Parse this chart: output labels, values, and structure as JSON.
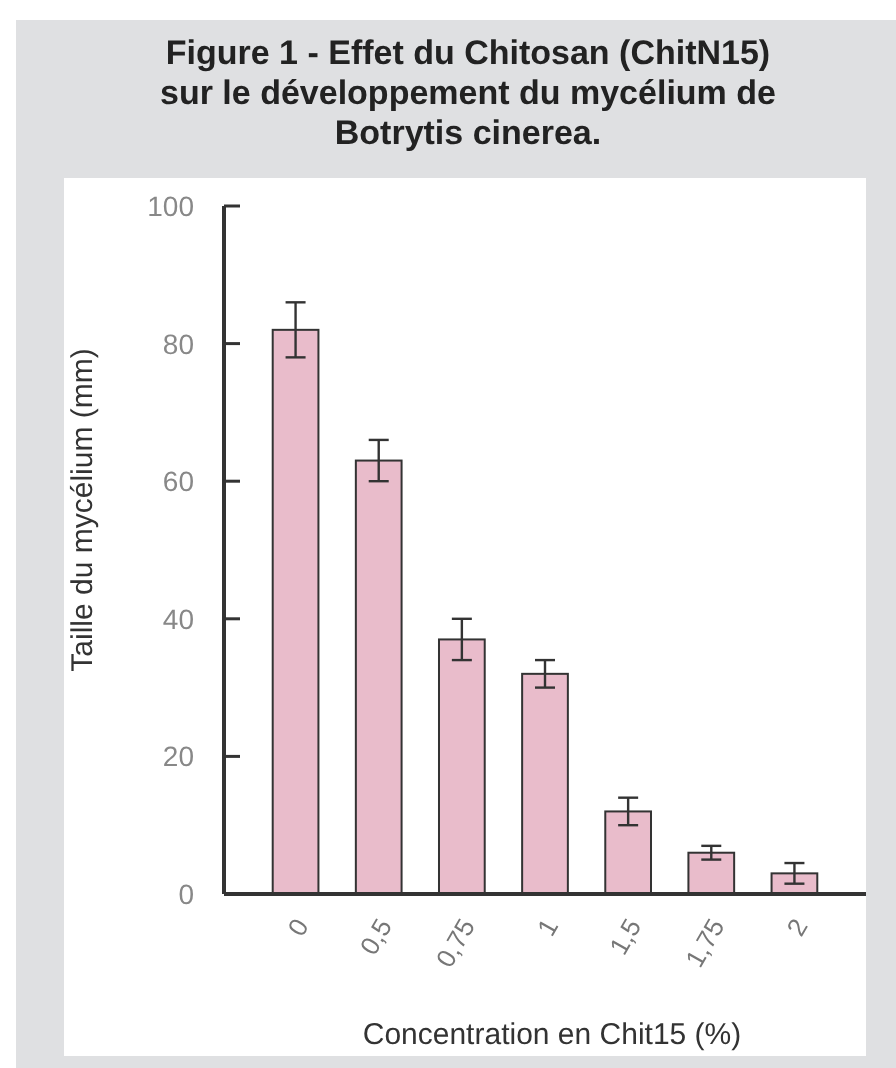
{
  "chart_data": {
    "type": "bar",
    "title": "Figure 1 - Effet du Chitosan (ChitN15) sur le développement du mycélium de Botrytis cinerea.",
    "xlabel": "Concentration en Chit15 (%)",
    "ylabel": "Taille du mycélium (mm)",
    "categories": [
      "0",
      "0,5",
      "0,75",
      "1",
      "1,5",
      "1,75",
      "2"
    ],
    "values": [
      82,
      63,
      37,
      32,
      12,
      6,
      3
    ],
    "errors": [
      4,
      3,
      3,
      2,
      2,
      1,
      1.5
    ],
    "color": "#e9bccb",
    "ylim": [
      0,
      100
    ],
    "yticks": [
      0,
      20,
      40,
      60,
      80,
      100
    ],
    "grid": false
  }
}
